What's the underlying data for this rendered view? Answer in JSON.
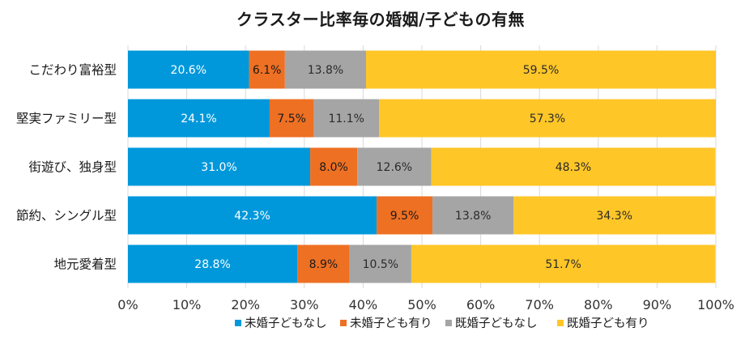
{
  "chart_data": {
    "type": "bar",
    "orientation": "horizontal",
    "stacked": true,
    "title": "クラスター比率毎の婚姻/子どもの有無",
    "categories": [
      "こだわり富裕型",
      "堅実ファミリー型",
      "街遊び、独身型",
      "節約、シングル型",
      "地元愛着型"
    ],
    "series": [
      {
        "name": "未婚子どもなし",
        "color": "#0098DB",
        "values": [
          20.6,
          24.1,
          31.0,
          42.3,
          28.8
        ],
        "labels": [
          "20.6%",
          "24.1%",
          "31.0%",
          "42.3%",
          "28.8%"
        ]
      },
      {
        "name": "未婚子ども有り",
        "color": "#EE7023",
        "values": [
          6.1,
          7.5,
          8.0,
          9.5,
          8.9
        ],
        "labels": [
          "6.1%",
          "7.5%",
          "8.0%",
          "9.5%",
          "8.9%"
        ]
      },
      {
        "name": "既婚子どもなし",
        "color": "#A5A5A5",
        "values": [
          13.8,
          11.1,
          12.6,
          13.8,
          10.5
        ],
        "labels": [
          "13.8%",
          "11.1%",
          "12.6%",
          "13.8%",
          "10.5%"
        ]
      },
      {
        "name": "既婚子ども有り",
        "color": "#FFC627",
        "values": [
          59.5,
          57.3,
          48.3,
          34.3,
          51.7
        ],
        "labels": [
          "59.5%",
          "57.3%",
          "48.3%",
          "34.3%",
          "51.7%"
        ]
      }
    ],
    "xlim": [
      0,
      100
    ],
    "x_ticks": [
      "0%",
      "10%",
      "20%",
      "30%",
      "40%",
      "50%",
      "60%",
      "70%",
      "80%",
      "90%",
      "100%"
    ],
    "grid": true,
    "legend_position": "bottom"
  }
}
